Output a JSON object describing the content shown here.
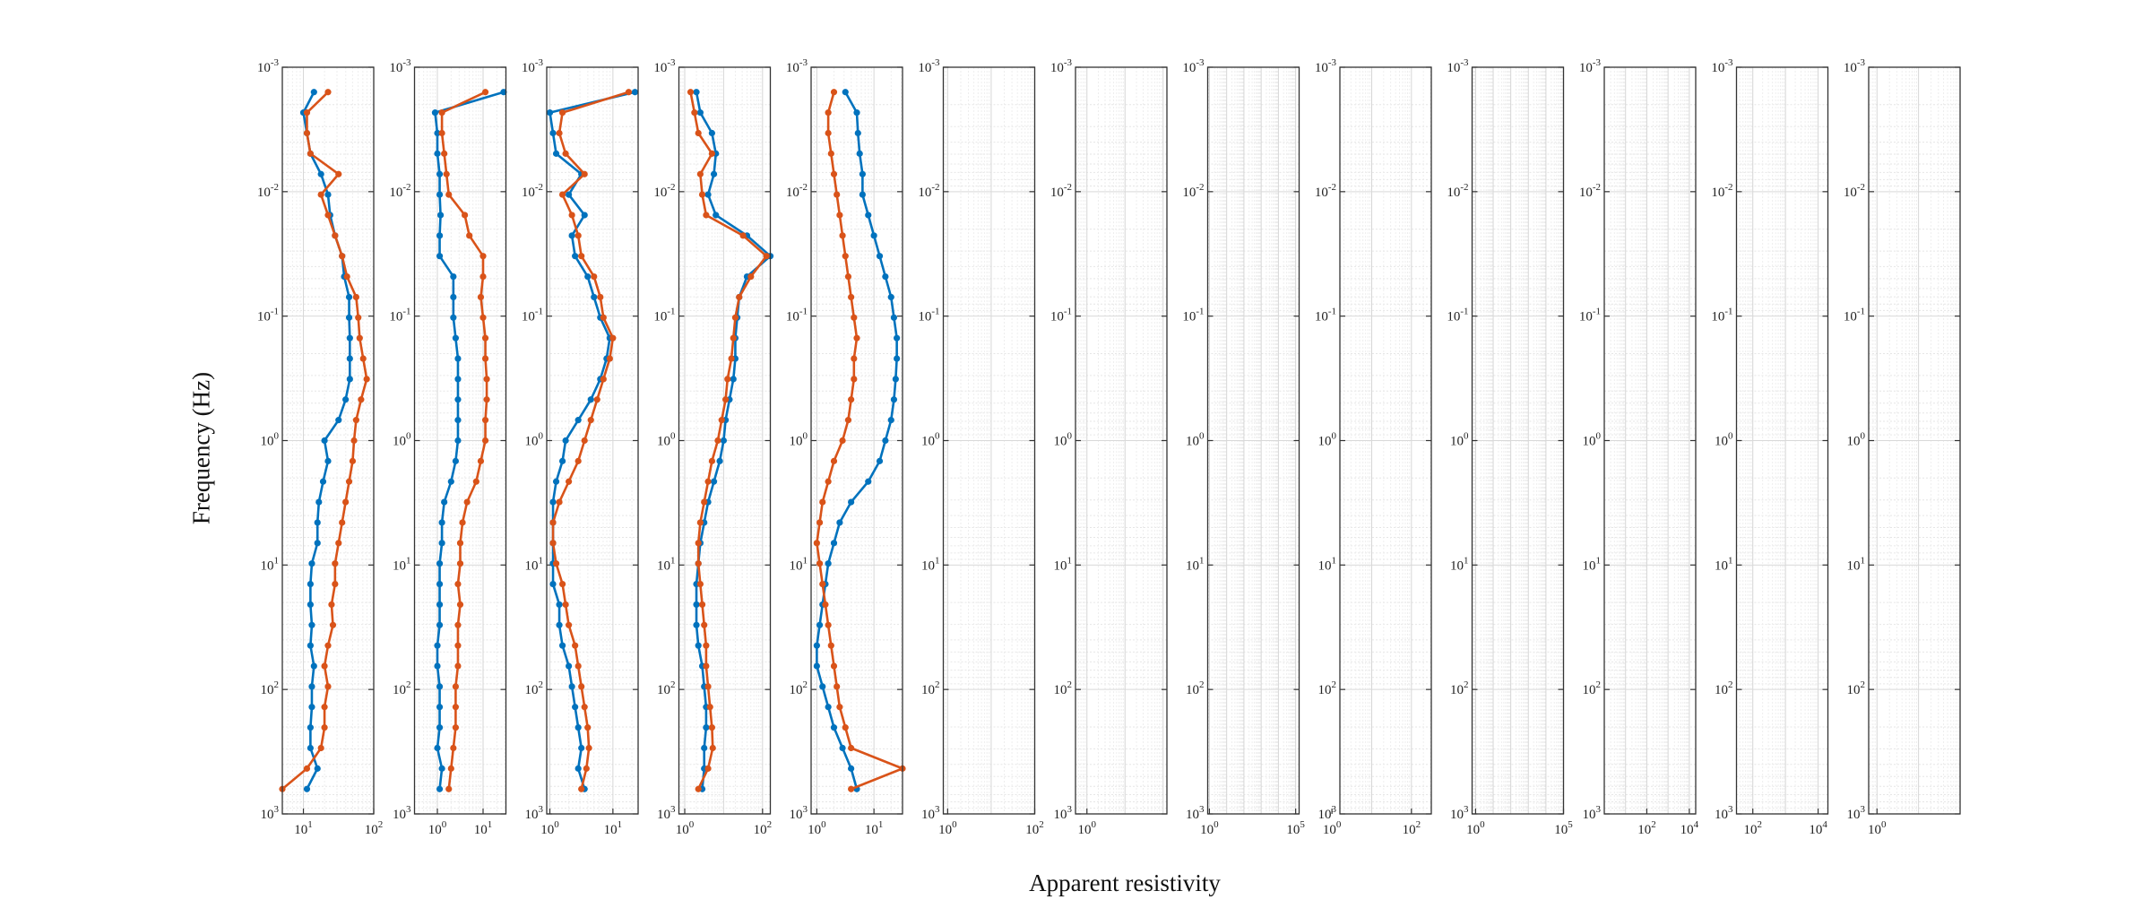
{
  "chart_data": {
    "type": "line",
    "ylabel": "Frequency (Hz)",
    "xlabel": "Apparent resistivity",
    "y_axis": {
      "scale": "log",
      "reversed": true,
      "range": [
        0.001,
        1000
      ],
      "tick_labels": [
        "10-3",
        "10-2",
        "10-1",
        "100",
        "101",
        "102",
        "103"
      ]
    },
    "grid": true,
    "colors": {
      "series_a": "#0072BD",
      "series_b": "#D95319"
    },
    "panels": [
      {
        "xlim_log": [
          0.7,
          2
        ],
        "x_tick_labels": [
          "101",
          "102"
        ],
        "series_a": [
          1.15,
          1.0,
          1.05,
          1.1,
          1.25,
          1.35,
          1.38,
          1.45,
          1.55,
          1.58,
          1.65,
          1.65,
          1.66,
          1.66,
          1.66,
          1.6,
          1.5,
          1.3,
          1.35,
          1.28,
          1.22,
          1.2,
          1.2,
          1.12,
          1.1,
          1.1,
          1.12,
          1.1,
          1.15,
          1.12,
          1.12,
          1.1,
          1.1,
          1.2,
          1.05
        ],
        "series_b": [
          1.35,
          1.05,
          1.05,
          1.1,
          1.5,
          1.25,
          1.35,
          1.45,
          1.55,
          1.62,
          1.75,
          1.78,
          1.8,
          1.85,
          1.9,
          1.82,
          1.75,
          1.72,
          1.7,
          1.65,
          1.6,
          1.55,
          1.5,
          1.45,
          1.45,
          1.4,
          1.42,
          1.35,
          1.3,
          1.35,
          1.3,
          1.3,
          1.25,
          1.05,
          0.7
        ]
      },
      {
        "xlim_log": [
          -0.5,
          1.5
        ],
        "x_tick_labels": [
          "100",
          "101"
        ],
        "series_a": [
          1.45,
          -0.05,
          0.0,
          0.0,
          0.05,
          0.05,
          0.07,
          0.05,
          0.05,
          0.35,
          0.35,
          0.35,
          0.4,
          0.45,
          0.45,
          0.45,
          0.45,
          0.45,
          0.4,
          0.3,
          0.15,
          0.1,
          0.1,
          0.05,
          0.05,
          0.05,
          0.05,
          0.0,
          0.0,
          0.05,
          0.05,
          0.05,
          0.0,
          0.1,
          0.05
        ],
        "series_b": [
          1.05,
          0.1,
          0.1,
          0.15,
          0.2,
          0.25,
          0.6,
          0.7,
          1.0,
          1.0,
          0.95,
          1.0,
          1.05,
          1.05,
          1.08,
          1.08,
          1.05,
          1.05,
          0.95,
          0.85,
          0.65,
          0.55,
          0.5,
          0.5,
          0.45,
          0.5,
          0.45,
          0.45,
          0.45,
          0.4,
          0.4,
          0.4,
          0.35,
          0.3,
          0.25
        ]
      },
      {
        "xlim_log": [
          -0.05,
          1.4
        ],
        "x_tick_labels": [
          "100",
          "101"
        ],
        "series_a": [
          1.35,
          0.0,
          0.05,
          0.1,
          0.5,
          0.3,
          0.55,
          0.35,
          0.4,
          0.6,
          0.7,
          0.8,
          0.95,
          0.9,
          0.8,
          0.65,
          0.45,
          0.25,
          0.2,
          0.1,
          0.05,
          0.05,
          0.05,
          0.05,
          0.05,
          0.15,
          0.15,
          0.2,
          0.3,
          0.35,
          0.4,
          0.45,
          0.5,
          0.45,
          0.55
        ],
        "series_b": [
          1.25,
          0.2,
          0.15,
          0.25,
          0.55,
          0.2,
          0.35,
          0.45,
          0.5,
          0.7,
          0.8,
          0.85,
          1.0,
          0.95,
          0.85,
          0.75,
          0.65,
          0.55,
          0.45,
          0.3,
          0.15,
          0.05,
          0.05,
          0.1,
          0.2,
          0.25,
          0.3,
          0.4,
          0.45,
          0.5,
          0.55,
          0.6,
          0.62,
          0.58,
          0.5
        ]
      },
      {
        "xlim_log": [
          -0.15,
          2.2
        ],
        "x_tick_labels": [
          "100",
          "102"
        ],
        "series_a": [
          0.3,
          0.4,
          0.7,
          0.8,
          0.75,
          0.6,
          0.8,
          1.6,
          2.2,
          1.6,
          1.4,
          1.35,
          1.3,
          1.3,
          1.25,
          1.15,
          1.05,
          1.0,
          0.9,
          0.75,
          0.6,
          0.5,
          0.4,
          0.35,
          0.3,
          0.3,
          0.3,
          0.35,
          0.45,
          0.5,
          0.55,
          0.55,
          0.5,
          0.5,
          0.45
        ],
        "series_b": [
          0.15,
          0.25,
          0.35,
          0.7,
          0.4,
          0.45,
          0.55,
          1.5,
          2.1,
          1.7,
          1.4,
          1.3,
          1.25,
          1.2,
          1.1,
          1.05,
          0.95,
          0.85,
          0.7,
          0.6,
          0.5,
          0.4,
          0.35,
          0.35,
          0.4,
          0.45,
          0.5,
          0.55,
          0.55,
          0.6,
          0.65,
          0.7,
          0.72,
          0.6,
          0.35
        ]
      },
      {
        "xlim_log": [
          -0.1,
          1.5
        ],
        "x_tick_labels": [
          "100",
          "101"
        ],
        "series_a": [
          0.5,
          0.7,
          0.72,
          0.75,
          0.8,
          0.8,
          0.9,
          1.0,
          1.1,
          1.2,
          1.3,
          1.35,
          1.4,
          1.4,
          1.38,
          1.35,
          1.3,
          1.2,
          1.1,
          0.9,
          0.6,
          0.4,
          0.3,
          0.2,
          0.15,
          0.1,
          0.05,
          0.0,
          0.0,
          0.1,
          0.2,
          0.3,
          0.45,
          0.6,
          0.7
        ],
        "series_b": [
          0.3,
          0.2,
          0.2,
          0.25,
          0.3,
          0.35,
          0.4,
          0.45,
          0.5,
          0.55,
          0.6,
          0.65,
          0.7,
          0.65,
          0.65,
          0.6,
          0.55,
          0.45,
          0.3,
          0.2,
          0.1,
          0.05,
          0.0,
          0.05,
          0.1,
          0.15,
          0.2,
          0.25,
          0.3,
          0.35,
          0.4,
          0.5,
          0.6,
          1.5,
          0.6
        ]
      },
      {
        "xlim_log": [
          -0.1,
          2.0
        ],
        "x_tick_labels": [
          "100",
          "102"
        ]
      },
      {
        "xlim_log": [
          -0.3,
          2.1
        ],
        "x_tick_labels": [
          "100"
        ]
      },
      {
        "xlim_log": [
          -0.1,
          5.2
        ],
        "x_tick_labels": [
          "100",
          "105"
        ]
      },
      {
        "xlim_log": [
          0.2,
          2.5
        ],
        "x_tick_labels": [
          "100",
          "102"
        ]
      },
      {
        "xlim_log": [
          -0.2,
          5.0
        ],
        "x_tick_labels": [
          "100",
          "105"
        ]
      },
      {
        "xlim_log": [
          0.0,
          4.3
        ],
        "x_tick_labels": [
          "102",
          "104"
        ]
      },
      {
        "xlim_log": [
          1.5,
          4.3
        ],
        "x_tick_labels": [
          "102",
          "104"
        ]
      },
      {
        "xlim_log": [
          -0.2,
          2.0
        ],
        "x_tick_labels": [
          "100"
        ]
      }
    ]
  }
}
